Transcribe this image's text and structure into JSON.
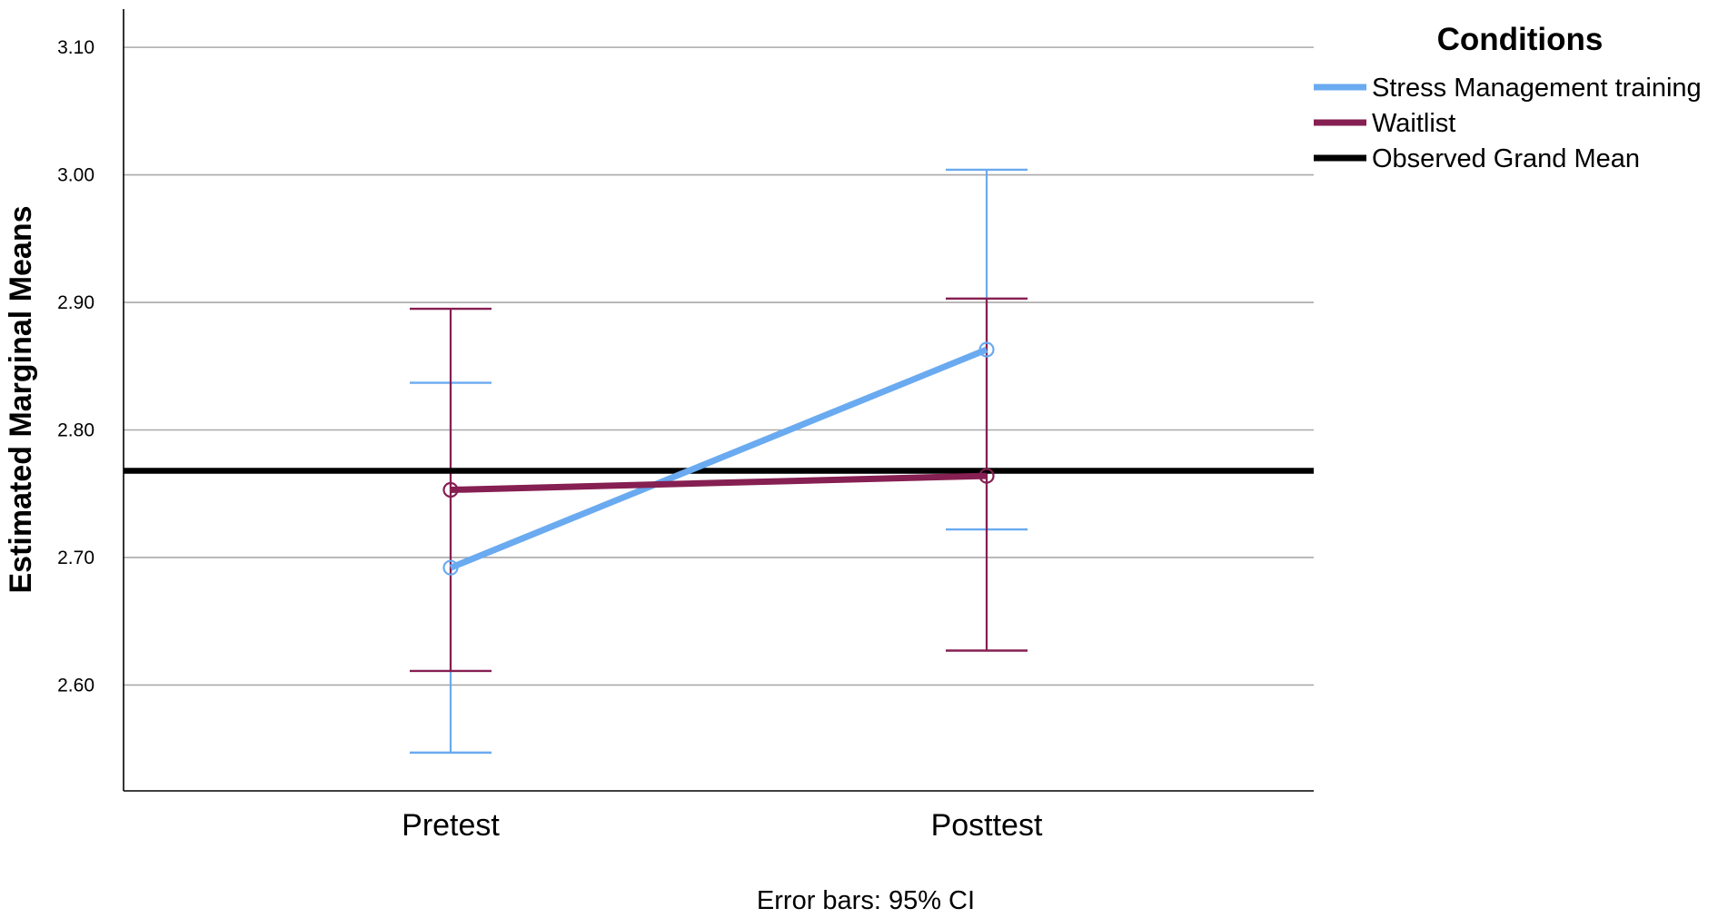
{
  "chart_data": {
    "type": "line",
    "ylabel": "Estimated Marginal Means",
    "xlabel": "",
    "categories": [
      "Pretest",
      "Posttest"
    ],
    "ylim": [
      2.517,
      3.13
    ],
    "yticks": [
      "3.10",
      "3.00",
      "2.90",
      "2.80",
      "2.70",
      "2.60"
    ],
    "ytick_values": [
      3.1,
      3.0,
      2.9,
      2.8,
      2.7,
      2.6
    ],
    "grid": true,
    "legend": {
      "title": "Conditions",
      "placement": "right"
    },
    "series": [
      {
        "name": "Stress Management training",
        "color": "#6AAAF0",
        "values": [
          2.692,
          2.863
        ],
        "ci_low": [
          2.547,
          2.722
        ],
        "ci_high": [
          2.837,
          3.004
        ]
      },
      {
        "name": "Waitlist",
        "color": "#861F52",
        "values": [
          2.753,
          2.764
        ],
        "ci_low": [
          2.611,
          2.627
        ],
        "ci_high": [
          2.895,
          2.903
        ]
      }
    ],
    "reference_line": {
      "name": "Observed Grand Mean",
      "color": "#000000",
      "value": 2.768
    },
    "footnote": "Error bars: 95% CI"
  }
}
